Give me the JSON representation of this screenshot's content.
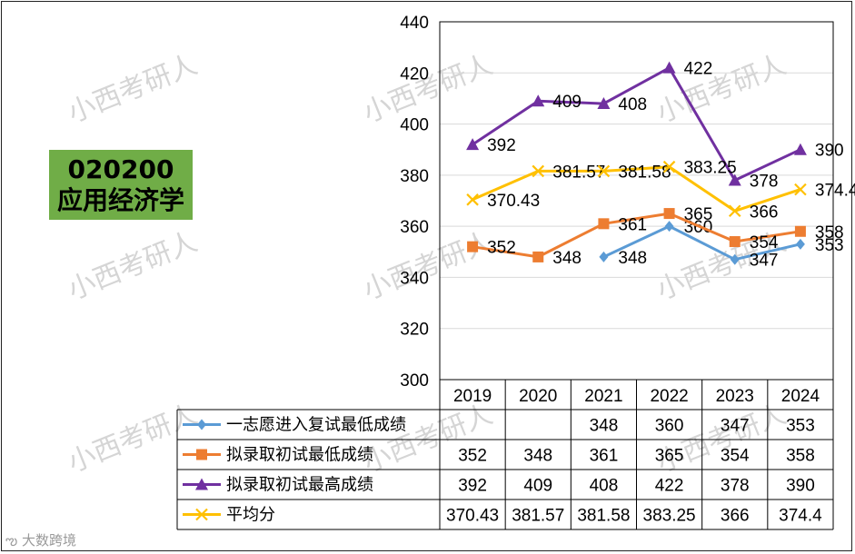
{
  "badge": {
    "code": "020200",
    "name": "应用经济学",
    "color": "#70ad47"
  },
  "watermark": "小西考研人",
  "footer_logo": "大数跨境",
  "chart_data": {
    "type": "line",
    "title": "",
    "xlabel": "",
    "ylabel": "",
    "ylim": [
      300,
      440
    ],
    "yticks": [
      300,
      320,
      340,
      360,
      380,
      400,
      420,
      440
    ],
    "grid": "horizontal",
    "legend": "data-table",
    "categories": [
      "2019",
      "2020",
      "2021",
      "2022",
      "2023",
      "2024"
    ],
    "series": [
      {
        "name": "一志愿进入复试最低成绩",
        "color": "#5b9bd5",
        "marker": "diamond",
        "values": [
          null,
          null,
          348,
          360,
          347,
          353
        ],
        "labels": [
          "",
          "",
          "348",
          "360",
          "347",
          "353"
        ]
      },
      {
        "name": "拟录取初试最低成绩",
        "color": "#ed7d31",
        "marker": "square",
        "values": [
          352,
          348,
          361,
          365,
          354,
          358
        ],
        "labels": [
          "352",
          "348",
          "361",
          "365",
          "354",
          "358"
        ]
      },
      {
        "name": "拟录取初试最高成绩",
        "color": "#7030a0",
        "marker": "triangle",
        "values": [
          392,
          409,
          408,
          422,
          378,
          390
        ],
        "labels": [
          "392",
          "409",
          "408",
          "422",
          "378",
          "390"
        ]
      },
      {
        "name": "平均分",
        "color": "#ffc000",
        "marker": "x",
        "values": [
          370.43,
          381.57,
          381.58,
          383.25,
          366,
          374.4
        ],
        "labels": [
          "370.43",
          "381.57",
          "381.58",
          "383.25",
          "366",
          "374.4"
        ]
      }
    ]
  }
}
